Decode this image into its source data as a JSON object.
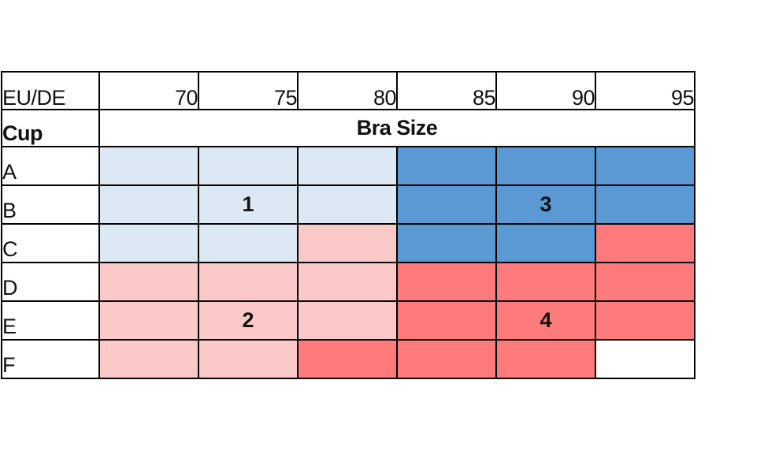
{
  "table": {
    "corner_label": "EU/DE",
    "band_sizes": [
      "70",
      "75",
      "80",
      "85",
      "90",
      "95"
    ],
    "cup_title": "Cup",
    "size_title": "Bra Size",
    "rows": [
      {
        "cup": "A",
        "cells": [
          "",
          "",
          "",
          "",
          "",
          ""
        ]
      },
      {
        "cup": "B",
        "cells": [
          "",
          "1",
          "",
          "",
          "3",
          ""
        ]
      },
      {
        "cup": "C",
        "cells": [
          "",
          "",
          "",
          "",
          "",
          ""
        ]
      },
      {
        "cup": "D",
        "cells": [
          "",
          "",
          "",
          "",
          "",
          ""
        ]
      },
      {
        "cup": "E",
        "cells": [
          "",
          "2",
          "",
          "",
          "4",
          ""
        ]
      },
      {
        "cup": "F",
        "cells": [
          "",
          "",
          "",
          "",
          "",
          ""
        ]
      }
    ],
    "group_colors": {
      "1": "#dce9f5",
      "2": "#fcc9c9",
      "3": "#5a99d4",
      "4": "#ff7b7b"
    }
  }
}
